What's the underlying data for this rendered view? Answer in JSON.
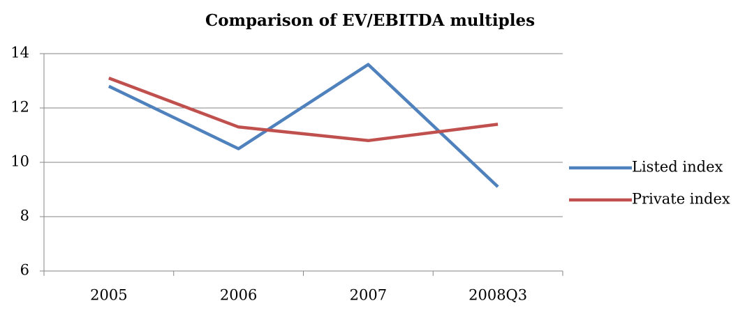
{
  "chart_data": {
    "type": "line",
    "title": "Comparison of EV/EBITDA multiples",
    "categories": [
      "2005",
      "2006",
      "2007",
      "2008Q3"
    ],
    "series": [
      {
        "name": "Listed index",
        "color": "#4f81bd",
        "values": [
          12.8,
          10.5,
          13.6,
          9.1
        ]
      },
      {
        "name": "Private index",
        "color": "#c0504d",
        "values": [
          13.1,
          11.3,
          10.8,
          11.4
        ]
      }
    ],
    "ylim": [
      6,
      14
    ],
    "yticks": [
      6,
      8,
      10,
      12,
      14
    ],
    "grid": true,
    "legend": "right"
  }
}
